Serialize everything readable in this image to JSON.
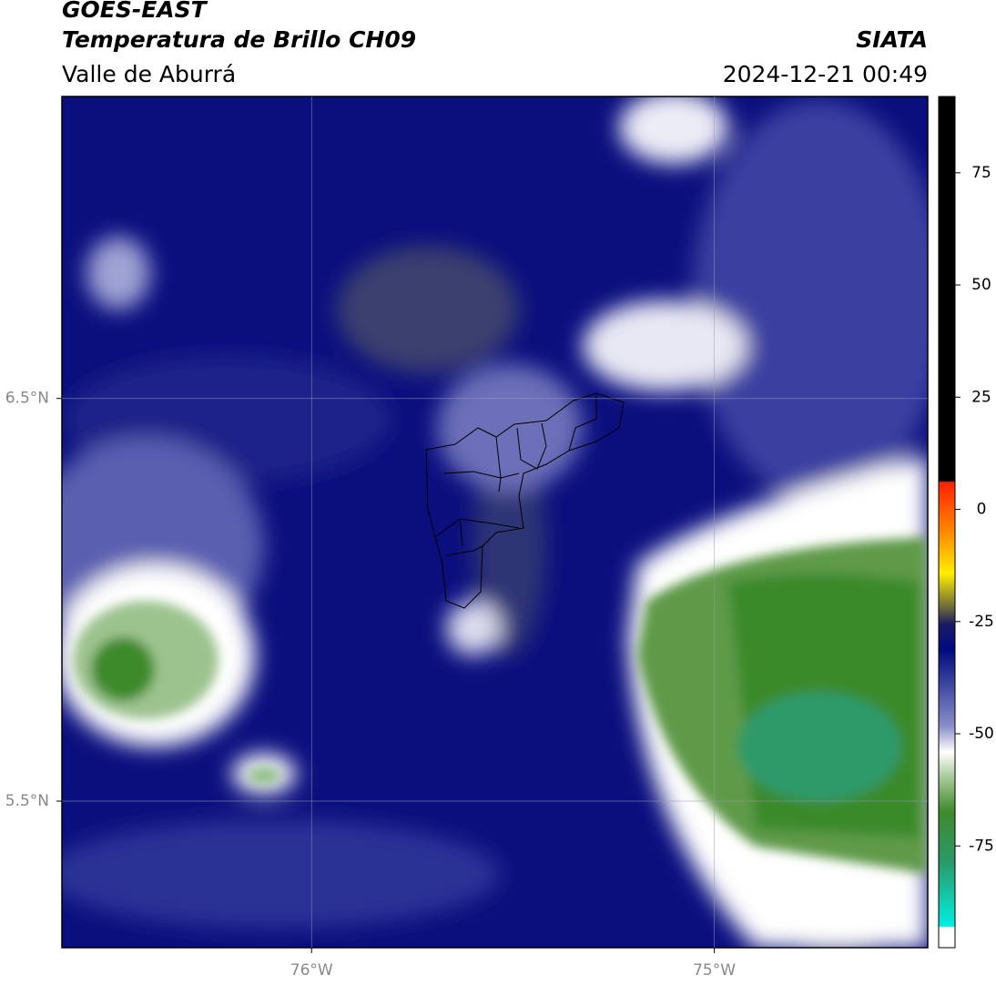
{
  "chart_data": {
    "type": "map",
    "title": "GOES-EAST",
    "subtitle": "Temperatura de Brillo CH09",
    "region": "Valle de Aburrá",
    "source": "SIATA",
    "timestamp": "2024-12-21 00:49",
    "xlim": [
      -76.62,
      -74.47
    ],
    "ylim": [
      5.136,
      7.25
    ],
    "xticks": [
      {
        "value": -76,
        "label": "76°W"
      },
      {
        "value": -75,
        "label": "75°W"
      }
    ],
    "yticks": [
      {
        "value": 5.5,
        "label": "5.5°N"
      },
      {
        "value": 6.5,
        "label": "6.5°N"
      }
    ],
    "grid": true,
    "colorbar": {
      "lim": [
        -93,
        92
      ],
      "ticks": [
        75,
        50,
        25,
        0,
        -25,
        -50,
        -75
      ]
    }
  }
}
